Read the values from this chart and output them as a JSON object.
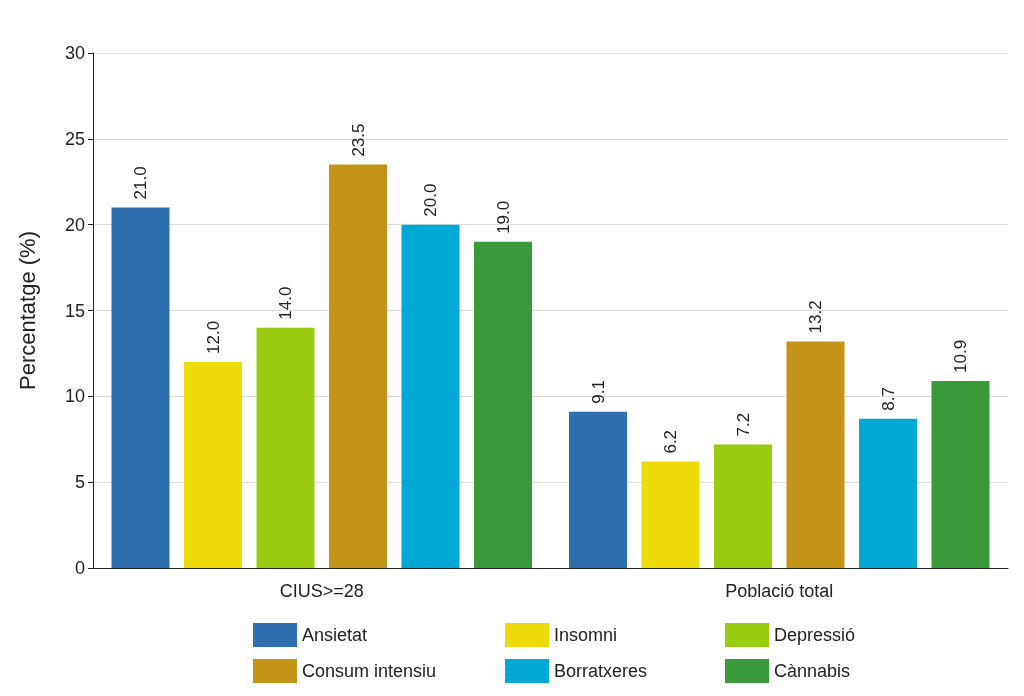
{
  "chart_data": {
    "type": "bar",
    "ylabel": "Percentatge (%)",
    "categories": [
      "CIUS>=28",
      "Població total"
    ],
    "series": [
      {
        "name": "Ansietat",
        "color": "#2e6fb0",
        "values": [
          21.0,
          9.1
        ],
        "value_labels": [
          "21.0",
          "9.1"
        ]
      },
      {
        "name": "Insomni",
        "color": "#eedc0a",
        "values": [
          12.0,
          6.2
        ],
        "value_labels": [
          "12.0",
          "6.2"
        ]
      },
      {
        "name": "Depressió",
        "color": "#99cc11",
        "values": [
          14.0,
          7.2
        ],
        "value_labels": [
          "14.0",
          "7.2"
        ]
      },
      {
        "name": "Consum intensiu",
        "color": "#c49418",
        "values": [
          23.5,
          13.2
        ],
        "value_labels": [
          "23.5",
          "13.2"
        ]
      },
      {
        "name": "Borratxeres",
        "color": "#00a9d4",
        "values": [
          20.0,
          8.7
        ],
        "value_labels": [
          "20.0",
          "8.7"
        ]
      },
      {
        "name": "Cànnabis",
        "color": "#3a9a3a",
        "values": [
          19.0,
          10.9
        ],
        "value_labels": [
          "19.0",
          "10.9"
        ]
      }
    ],
    "ylim": [
      0,
      30
    ],
    "yticks": [
      0,
      5,
      10,
      15,
      20,
      25,
      30
    ],
    "grid": "y",
    "legend": "bottom"
  }
}
